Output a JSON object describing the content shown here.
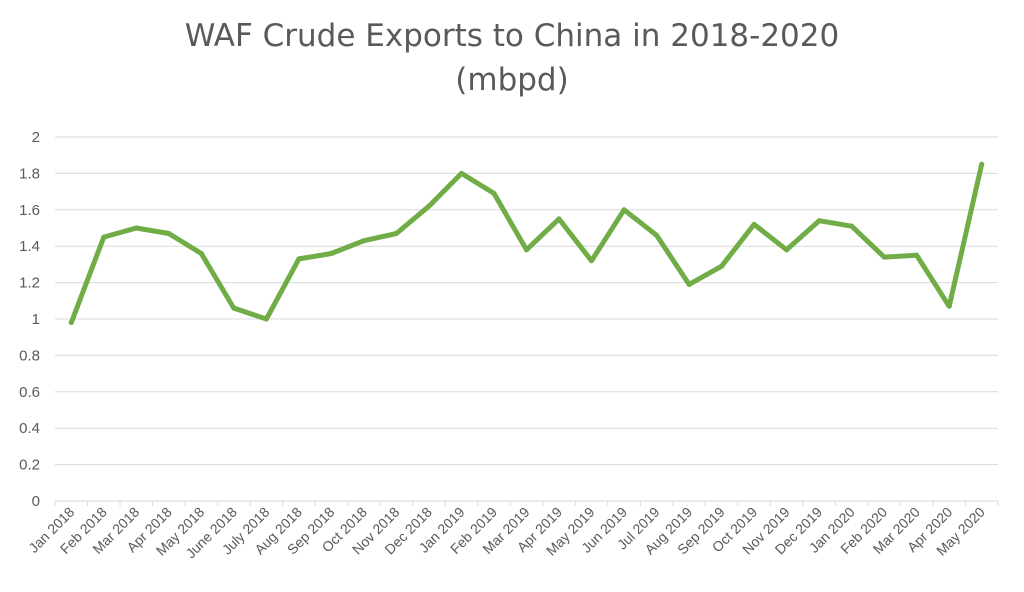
{
  "chart_data": {
    "type": "line",
    "title": "WAF Crude Exports to China in 2018-2020",
    "subtitle": "(mbpd)",
    "xlabel": "",
    "ylabel": "",
    "ylim": [
      0,
      2
    ],
    "yticks": [
      "0",
      "0.2",
      "0.4",
      "0.6",
      "0.8",
      "1",
      "1.2",
      "1.4",
      "1.6",
      "1.8",
      "2"
    ],
    "grid": true,
    "legend": "none",
    "line_color": "#70ad47",
    "categories": [
      "Jan 2018",
      "Feb 2018",
      "Mar 2018",
      "Apr 2018",
      "May 2018",
      "June 2018",
      "July 2018",
      "Aug 2018",
      "Sep 2018",
      "Oct 2018",
      "Nov 2018",
      "Dec 2018",
      "Jan 2019",
      "Feb 2019",
      "Mar 2019",
      "Apr 2019",
      "May 2019",
      "Jun 2019",
      "Jul 2019",
      "Aug 2019",
      "Sep 2019",
      "Oct 2019",
      "Nov 2019",
      "Dec 2019",
      "Jan 2020",
      "Feb 2020",
      "Mar 2020",
      "Apr 2020",
      "May 2020"
    ],
    "values": [
      0.98,
      1.45,
      1.5,
      1.47,
      1.36,
      1.06,
      1.0,
      1.33,
      1.36,
      1.43,
      1.47,
      1.62,
      1.8,
      1.69,
      1.38,
      1.55,
      1.32,
      1.6,
      1.46,
      1.19,
      1.29,
      1.52,
      1.38,
      1.54,
      1.51,
      1.34,
      1.35,
      1.07,
      1.85
    ]
  }
}
